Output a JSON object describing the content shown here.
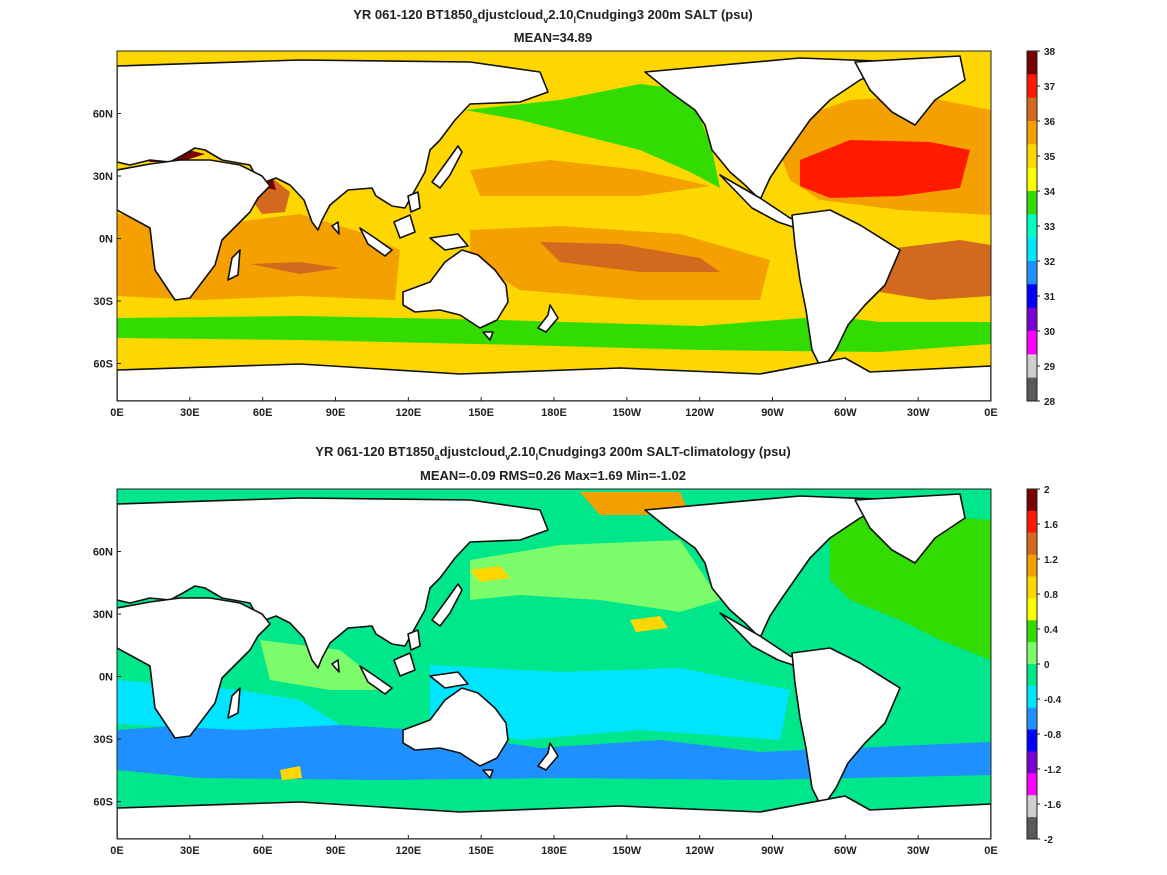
{
  "panels": [
    {
      "title_parts": [
        "YR 061-120 BT1850",
        "a",
        "djustcloud",
        "v",
        "2.10",
        "l",
        "Cnudging3 200m SALT (psu)"
      ],
      "subtitle": "MEAN=34.89",
      "colorbar": {
        "ticks": [
          "38",
          "37",
          "36",
          "35",
          "34",
          "33",
          "32",
          "31",
          "30",
          "29",
          "28"
        ],
        "colors": [
          "#7a0000",
          "#ff1a00",
          "#d2691e",
          "#f4a000",
          "#ffd700",
          "#ffff00",
          "#32dc00",
          "#00ffc0",
          "#00e5ff",
          "#1e90ff",
          "#0000ff",
          "#7a00d6",
          "#ff00ff",
          "#cfcfcf",
          "#595959"
        ]
      },
      "fields": {
        "ocean_base": "#ffd700",
        "subpolar_north_pacific": "#32dc00",
        "southern_ocean_belt": "#32dc00",
        "south_pacific_gyre": "#f4a000",
        "south_pacific_max": "#d2691e",
        "north_atlantic_gyre": "#f4a000",
        "north_atlantic_max": "#ff1a00",
        "arabian_sea": "#d2691e",
        "red_sea": "#7a0000",
        "mediterranean": "#7a0000",
        "indian_ocean": "#f4a000",
        "south_atlantic_max": "#d2691e",
        "antarctic_margin": "#ffff00"
      }
    },
    {
      "title_parts": [
        "YR 061-120 BT1850",
        "a",
        "djustcloud",
        "v",
        "2.10",
        "l",
        "Cnudging3 200m SALT-climatology (psu)"
      ],
      "subtitle": "MEAN=-0.09   RMS=0.26   Max=1.69   Min=-1.02",
      "colorbar": {
        "ticks": [
          "2",
          "1.6",
          "1.2",
          "0.8",
          "0.4",
          "0",
          "-0.4",
          "-0.8",
          "-1.2",
          "-1.6",
          "-2"
        ],
        "colors": [
          "#7a0000",
          "#ff1a00",
          "#d2691e",
          "#f4a000",
          "#ffd700",
          "#ffff00",
          "#32dc00",
          "#7cfc6a",
          "#00e68a",
          "#00e5ff",
          "#1e90ff",
          "#0000ff",
          "#7a00d6",
          "#ff00ff",
          "#cfcfcf",
          "#595959"
        ]
      },
      "fields": {
        "ocean_base": "#00e68a",
        "south_pacific_fresh": "#00e5ff",
        "southern_ocean_fresh": "#1e90ff",
        "north_pacific_green": "#7cfc6a",
        "atlantic_salty": "#32dc00",
        "kuroshio_anomaly": "#ffd700",
        "arctic_anomaly": "#f4a000"
      }
    }
  ],
  "axes": {
    "xticks": [
      "0E",
      "30E",
      "60E",
      "90E",
      "120E",
      "150E",
      "180E",
      "150W",
      "120W",
      "90W",
      "60W",
      "30W",
      "0E"
    ],
    "x_degrees": [
      0,
      30,
      60,
      90,
      120,
      150,
      180,
      210,
      240,
      270,
      300,
      330,
      360
    ],
    "yticks": [
      "60N",
      "30N",
      "0N",
      "30S",
      "60S"
    ],
    "y_degrees": [
      60,
      30,
      0,
      -30,
      -60
    ],
    "lat_range": [
      -78,
      90
    ],
    "lon_range": [
      0,
      360
    ]
  }
}
